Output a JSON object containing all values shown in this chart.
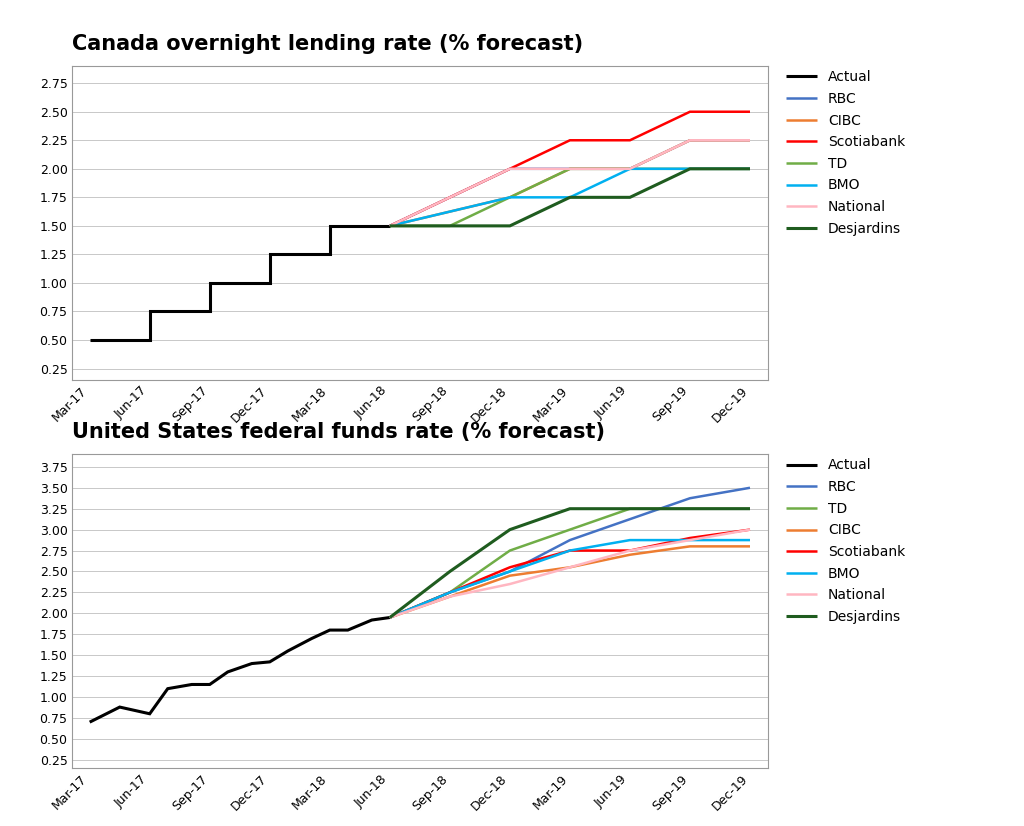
{
  "canada_title": "Canada overnight lending rate (% forecast)",
  "us_title": "United States federal funds rate (% forecast)",
  "x_labels": [
    "Mar-17",
    "Jun-17",
    "Sep-17",
    "Dec-17",
    "Mar-18",
    "Jun-18",
    "Sep-18",
    "Dec-18",
    "Mar-19",
    "Jun-19",
    "Sep-19",
    "Dec-19"
  ],
  "canada": {
    "actual": {
      "x": [
        0,
        1,
        1,
        2,
        2,
        3,
        3,
        4,
        4,
        5
      ],
      "y": [
        0.5,
        0.5,
        0.75,
        0.75,
        1.0,
        1.0,
        1.25,
        1.25,
        1.5,
        1.5
      ],
      "color": "#000000",
      "label": "Actual",
      "lw": 2.2
    },
    "rbc": {
      "x": [
        5,
        7,
        8,
        9,
        10,
        11
      ],
      "y": [
        1.5,
        2.0,
        2.0,
        2.0,
        2.25,
        2.25
      ],
      "color": "#4472C4",
      "label": "RBC",
      "lw": 1.8
    },
    "cibc": {
      "x": [
        5,
        7,
        8,
        9,
        10,
        11
      ],
      "y": [
        1.5,
        1.75,
        2.0,
        2.0,
        2.25,
        2.25
      ],
      "color": "#ED7D31",
      "label": "CIBC",
      "lw": 1.8
    },
    "scotiabank": {
      "x": [
        5,
        7,
        8,
        9,
        10,
        11
      ],
      "y": [
        1.5,
        2.0,
        2.25,
        2.25,
        2.5,
        2.5
      ],
      "color": "#FF0000",
      "label": "Scotiabank",
      "lw": 1.8
    },
    "td": {
      "x": [
        5,
        6,
        7,
        8,
        9,
        10,
        11
      ],
      "y": [
        1.5,
        1.5,
        1.75,
        2.0,
        2.0,
        2.0,
        2.0
      ],
      "color": "#70AD47",
      "label": "TD",
      "lw": 1.8
    },
    "bmo": {
      "x": [
        5,
        7,
        8,
        9,
        10,
        11
      ],
      "y": [
        1.5,
        1.75,
        1.75,
        2.0,
        2.0,
        2.0
      ],
      "color": "#00B0F0",
      "label": "BMO",
      "lw": 1.8
    },
    "national": {
      "x": [
        5,
        7,
        8,
        9,
        10,
        11
      ],
      "y": [
        1.5,
        2.0,
        2.0,
        2.0,
        2.25,
        2.25
      ],
      "color": "#FFB6C1",
      "label": "National",
      "lw": 1.8
    },
    "desjardins": {
      "x": [
        5,
        6,
        7,
        8,
        9,
        10,
        11
      ],
      "y": [
        1.5,
        1.5,
        1.5,
        1.75,
        1.75,
        2.0,
        2.0
      ],
      "color": "#1F5C1F",
      "label": "Desjardins",
      "lw": 2.2
    }
  },
  "us": {
    "actual": {
      "x": [
        0,
        0.5,
        1,
        1.3,
        1.7,
        2,
        2.3,
        2.7,
        3,
        3.3,
        3.7,
        4,
        4.3,
        4.7,
        5
      ],
      "y": [
        0.7,
        0.88,
        0.8,
        1.1,
        1.15,
        1.15,
        1.3,
        1.4,
        1.42,
        1.55,
        1.7,
        1.8,
        1.8,
        1.92,
        1.95
      ],
      "color": "#000000",
      "label": "Actual",
      "lw": 2.2
    },
    "rbc": {
      "x": [
        5,
        6,
        7,
        8,
        9,
        10,
        11
      ],
      "y": [
        1.95,
        2.25,
        2.5,
        2.875,
        3.125,
        3.375,
        3.5
      ],
      "color": "#4472C4",
      "label": "RBC",
      "lw": 1.8
    },
    "td": {
      "x": [
        5,
        6,
        7,
        8,
        9,
        10,
        11
      ],
      "y": [
        1.95,
        2.25,
        2.75,
        3.0,
        3.25,
        3.25,
        3.25
      ],
      "color": "#70AD47",
      "label": "TD",
      "lw": 1.8
    },
    "cibc": {
      "x": [
        5,
        6,
        7,
        8,
        9,
        10,
        11
      ],
      "y": [
        1.95,
        2.2,
        2.45,
        2.55,
        2.7,
        2.8,
        2.8
      ],
      "color": "#ED7D31",
      "label": "CIBC",
      "lw": 1.8
    },
    "scotiabank": {
      "x": [
        5,
        6,
        7,
        8,
        9,
        10,
        11
      ],
      "y": [
        1.95,
        2.25,
        2.55,
        2.75,
        2.75,
        2.9,
        3.0
      ],
      "color": "#FF0000",
      "label": "Scotiabank",
      "lw": 1.8
    },
    "bmo": {
      "x": [
        5,
        6,
        7,
        8,
        9,
        10,
        11
      ],
      "y": [
        1.95,
        2.25,
        2.5,
        2.75,
        2.875,
        2.875,
        2.875
      ],
      "color": "#00B0F0",
      "label": "BMO",
      "lw": 1.8
    },
    "national": {
      "x": [
        5,
        6,
        7,
        8,
        9,
        10,
        11
      ],
      "y": [
        1.95,
        2.2,
        2.35,
        2.55,
        2.75,
        2.875,
        3.0
      ],
      "color": "#FFB6C1",
      "label": "National",
      "lw": 1.8
    },
    "desjardins": {
      "x": [
        5,
        6,
        7,
        8,
        9,
        10,
        11
      ],
      "y": [
        1.95,
        2.5,
        3.0,
        3.25,
        3.25,
        3.25,
        3.25
      ],
      "color": "#1F5C1F",
      "label": "Desjardins",
      "lw": 2.2
    }
  },
  "canada_yticks": [
    0.25,
    0.5,
    0.75,
    1.0,
    1.25,
    1.5,
    1.75,
    2.0,
    2.25,
    2.5,
    2.75
  ],
  "us_yticks": [
    0.25,
    0.5,
    0.75,
    1.0,
    1.25,
    1.5,
    1.75,
    2.0,
    2.25,
    2.5,
    2.75,
    3.0,
    3.25,
    3.5,
    3.75
  ],
  "canada_ylim": [
    0.15,
    2.9
  ],
  "us_ylim": [
    0.15,
    3.9
  ],
  "canada_legend_order": [
    "actual",
    "rbc",
    "cibc",
    "scotiabank",
    "td",
    "bmo",
    "national",
    "desjardins"
  ],
  "us_legend_order": [
    "actual",
    "rbc",
    "td",
    "cibc",
    "scotiabank",
    "bmo",
    "national",
    "desjardins"
  ],
  "background_color": "#FFFFFF",
  "grid_color": "#C8C8C8",
  "title_fontsize": 15,
  "tick_fontsize": 9,
  "legend_fontsize": 10
}
